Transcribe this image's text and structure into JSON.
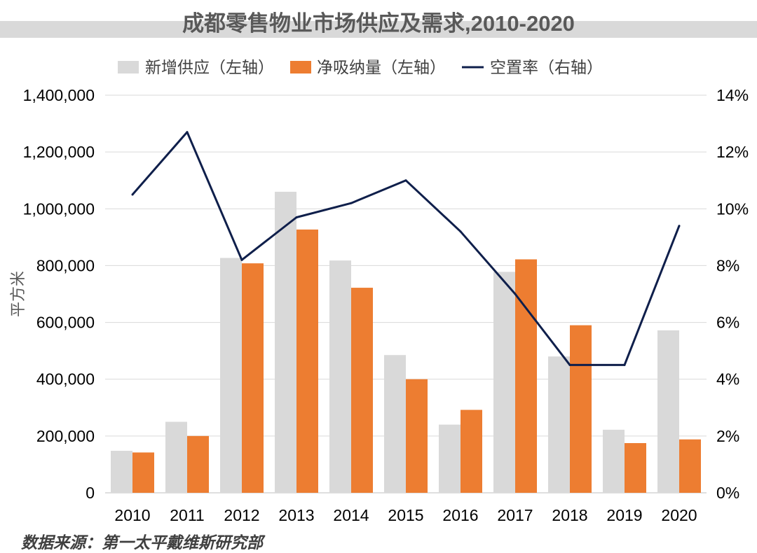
{
  "chart_data": {
    "type": "bar",
    "title": "成都零售物业市场供应及需求,2010-2020",
    "categories": [
      "2010",
      "2011",
      "2012",
      "2013",
      "2014",
      "2015",
      "2016",
      "2017",
      "2018",
      "2019",
      "2020"
    ],
    "series": [
      {
        "name": "新增供应（左轴）",
        "type": "bar",
        "axis": "left",
        "color": "#d9d9d9",
        "values": [
          148000,
          250000,
          827000,
          1060000,
          818000,
          485000,
          240000,
          778000,
          480000,
          222000,
          572000
        ]
      },
      {
        "name": "净吸纳量（左轴）",
        "type": "bar",
        "axis": "left",
        "color": "#ed7d31",
        "values": [
          142000,
          200000,
          808000,
          927000,
          722000,
          400000,
          292000,
          822000,
          590000,
          175000,
          188000
        ]
      },
      {
        "name": "空置率（右轴）",
        "type": "line",
        "axis": "right",
        "color": "#0f1f4b",
        "values": [
          10.5,
          12.7,
          8.2,
          9.7,
          10.2,
          11.0,
          9.2,
          7.0,
          4.5,
          4.5,
          9.4
        ]
      }
    ],
    "ylabel": "平方米",
    "ylim": [
      0,
      1400000
    ],
    "y_ticks": [
      "0",
      "200,000",
      "400,000",
      "600,000",
      "800,000",
      "1,000,000",
      "1,200,000",
      "1,400,000"
    ],
    "y2lim": [
      0,
      14
    ],
    "y2_ticks": [
      "0%",
      "2%",
      "4%",
      "6%",
      "8%",
      "10%",
      "12%",
      "14%"
    ],
    "legend_position": "top"
  },
  "source": "数据来源：第一太平戴维斯研究部"
}
